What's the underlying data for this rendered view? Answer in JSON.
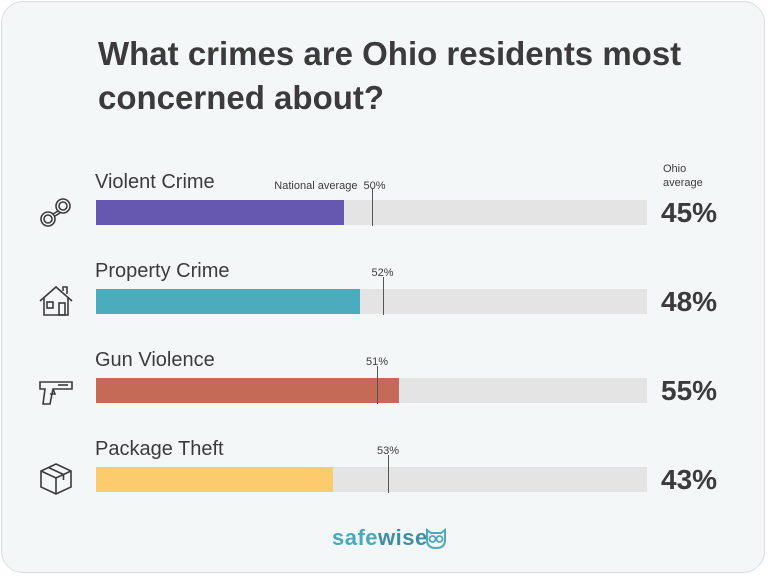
{
  "chart_data": {
    "type": "bar",
    "title": "What crimes are Ohio residents most concerned about?",
    "value_header": "Ohio average",
    "reference_label": "National average",
    "xlim": [
      0,
      100
    ],
    "series": [
      {
        "name": "Ohio average",
        "values": [
          45,
          48,
          55,
          43
        ]
      },
      {
        "name": "National average",
        "values": [
          50,
          52,
          51,
          53
        ]
      }
    ],
    "rows": [
      {
        "category": "Violent Crime",
        "ohio": 45,
        "ohio_label": "45%",
        "national": 50,
        "national_label": "50%",
        "color": "#6657b0",
        "icon": "handcuffs-icon"
      },
      {
        "category": "Property Crime",
        "ohio": 48,
        "ohio_label": "48%",
        "national": 52,
        "national_label": "52%",
        "color": "#4aacbd",
        "icon": "house-icon"
      },
      {
        "category": "Gun Violence",
        "ohio": 55,
        "ohio_label": "55%",
        "national": 51,
        "national_label": "51%",
        "color": "#c66a58",
        "icon": "gun-icon"
      },
      {
        "category": "Package Theft",
        "ohio": 43,
        "ohio_label": "43%",
        "national": 53,
        "national_label": "53%",
        "color": "#fbcb6d",
        "icon": "package-icon"
      }
    ]
  },
  "brand": {
    "part1": "safe",
    "part2": "wise",
    "colors": {
      "safe": "#4aa9ba",
      "wise": "#3f8fa0"
    }
  }
}
